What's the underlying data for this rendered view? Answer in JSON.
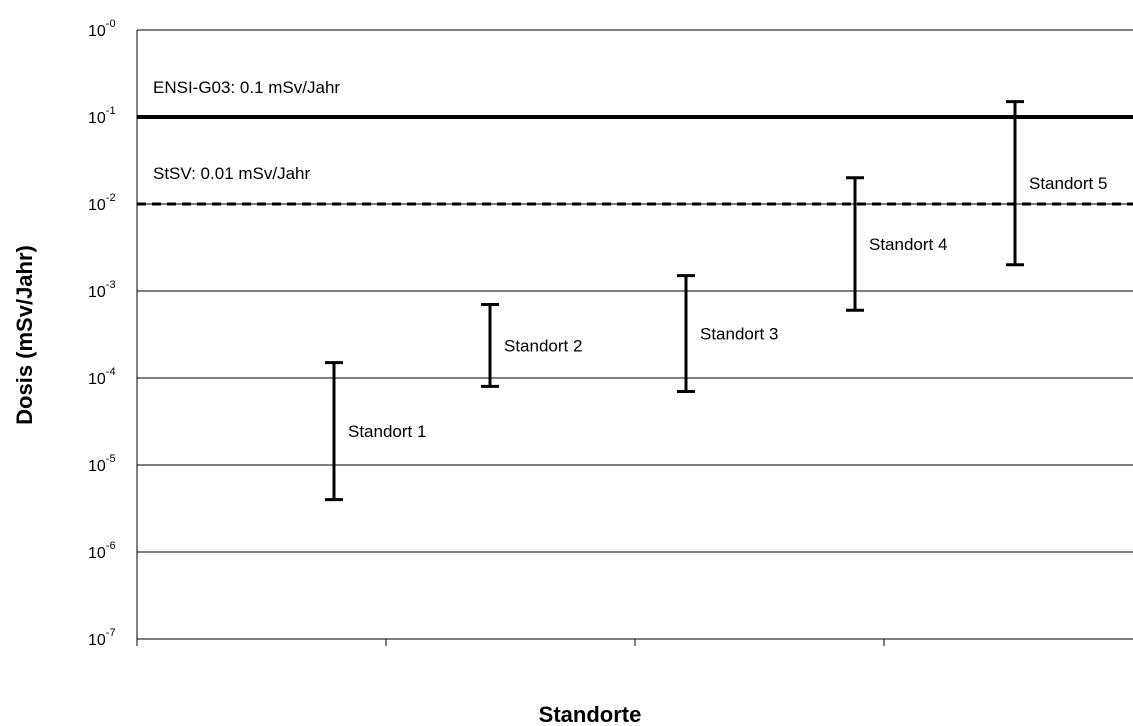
{
  "chart_data": {
    "type": "error-bar",
    "title": "",
    "xlabel": "Standorte",
    "ylabel": "Dosis (mSv/Jahr)",
    "y_scale": "log",
    "ylim": [
      1e-07,
      1
    ],
    "y_ticks": [
      {
        "value": 1,
        "base": "10",
        "exp": "-0"
      },
      {
        "value": 0.1,
        "base": "10",
        "exp": "-1"
      },
      {
        "value": 0.01,
        "base": "10",
        "exp": "-2"
      },
      {
        "value": 0.001,
        "base": "10",
        "exp": "-3"
      },
      {
        "value": 0.0001,
        "base": "10",
        "exp": "-4"
      },
      {
        "value": 1e-05,
        "base": "10",
        "exp": "-5"
      },
      {
        "value": 1e-06,
        "base": "10",
        "exp": "-6"
      },
      {
        "value": 1e-07,
        "base": "10",
        "exp": "-7"
      }
    ],
    "grid": true,
    "reference_lines": [
      {
        "label": "ENSI-G03: 0.1 mSv/Jahr",
        "value": 0.1,
        "style": "solid"
      },
      {
        "label": "StSV: 0.01 mSv/Jahr",
        "value": 0.01,
        "style": "dashed"
      }
    ],
    "ranges": [
      {
        "label": "Standort 1",
        "low": 4e-06,
        "high": 0.00015
      },
      {
        "label": "Standort 2",
        "low": 8e-05,
        "high": 0.0007
      },
      {
        "label": "Standort 3",
        "low": 7e-05,
        "high": 0.0015
      },
      {
        "label": "Standort 4",
        "low": 0.0006,
        "high": 0.02
      },
      {
        "label": "Standort 5",
        "low": 0.002,
        "high": 0.15
      }
    ]
  }
}
